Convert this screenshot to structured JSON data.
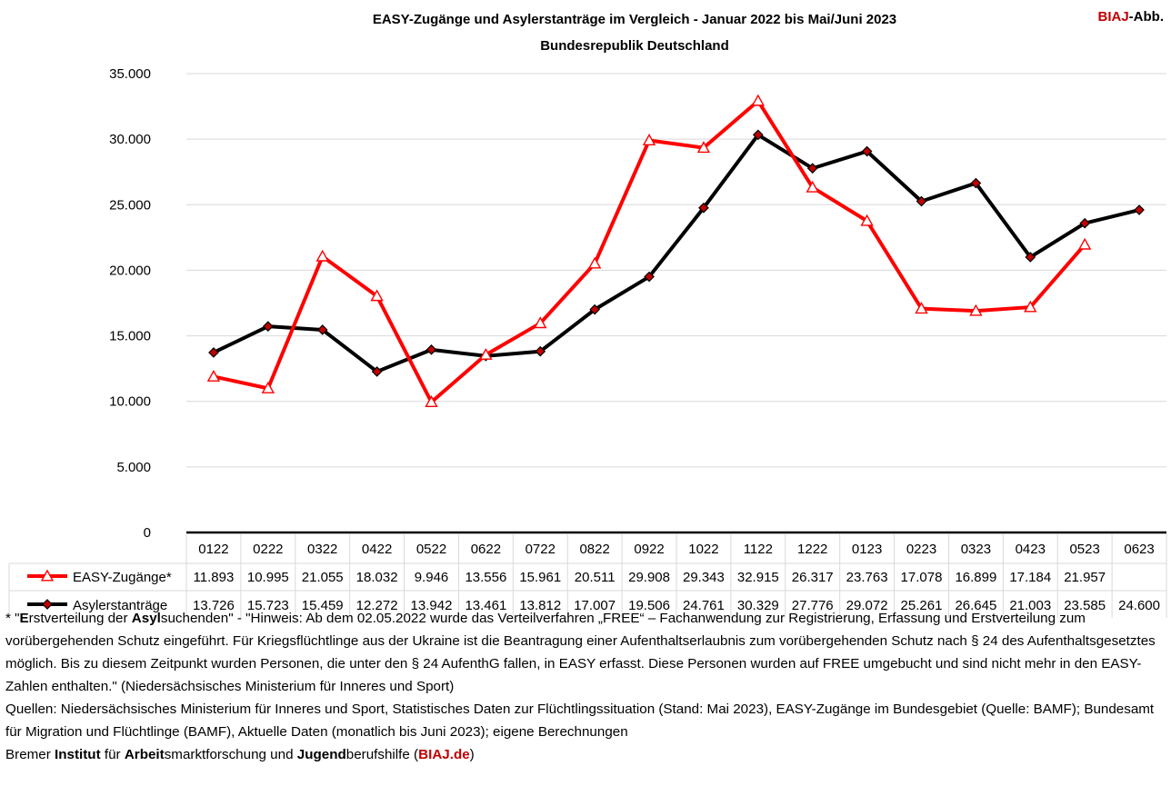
{
  "brand": {
    "prefix": "BIAJ",
    "suffix": "-Abb."
  },
  "chart_data": {
    "type": "line",
    "title": "EASY-Zugänge und Asylerstanträge im Vergleich - Januar 2022 bis Mai/Juni 2023",
    "subtitle": "Bundesrepublik Deutschland",
    "categories": [
      "0122",
      "0222",
      "0322",
      "0422",
      "0522",
      "0622",
      "0722",
      "0822",
      "0922",
      "1022",
      "1122",
      "1222",
      "0123",
      "0223",
      "0323",
      "0423",
      "0523",
      "0623"
    ],
    "ylim": [
      0,
      35000
    ],
    "yticks": [
      0,
      5000,
      10000,
      15000,
      20000,
      25000,
      30000,
      35000
    ],
    "ytick_labels": [
      "0",
      "5.000",
      "10.000",
      "15.000",
      "20.000",
      "25.000",
      "30.000",
      "35.000"
    ],
    "grid": true,
    "legend": "bottom-left (data table)",
    "series": [
      {
        "name": "EASY-Zugänge*",
        "color": "#ff0000",
        "marker": "triangle",
        "values": [
          11893,
          10995,
          21055,
          18032,
          9946,
          13556,
          15961,
          20511,
          29908,
          29343,
          32915,
          26317,
          23763,
          17078,
          16899,
          17184,
          21957,
          null
        ],
        "labels": [
          "11.893",
          "10.995",
          "21.055",
          "18.032",
          "9.946",
          "13.556",
          "15.961",
          "20.511",
          "29.908",
          "29.343",
          "32.915",
          "26.317",
          "23.763",
          "17.078",
          "16.899",
          "17.184",
          "21.957",
          ""
        ]
      },
      {
        "name": "Asylerstanträge",
        "color": "#000000",
        "marker": "diamond",
        "values": [
          13726,
          15723,
          15459,
          12272,
          13942,
          13461,
          13812,
          17007,
          19506,
          24761,
          30329,
          27776,
          29072,
          25261,
          26645,
          21003,
          23585,
          24600
        ],
        "labels": [
          "13.726",
          "15.723",
          "15.459",
          "12.272",
          "13.942",
          "13.461",
          "13.812",
          "17.007",
          "19.506",
          "24.761",
          "30.329",
          "27.776",
          "29.072",
          "25.261",
          "26.645",
          "21.003",
          "23.585",
          "24.600"
        ]
      }
    ]
  },
  "notes": {
    "star": "* \"",
    "e_bold": "E",
    "rstverteilung": "rstverteilung der ",
    "asyl_bold": "Asyl",
    "hinweis": "suchenden\" - \"Hinweis: Ab dem 02.05.2022 wurde das Verteilverfahren „FREE“ – Fachanwendung zur Registrierung, Erfassung und Erstverteilung zum vorübergehenden Schutz eingeführt. Für Kriegsflüchtlinge aus der Ukraine ist die Beantragung einer Aufenthaltserlaubnis zum vorübergehenden Schutz nach § 24 des Aufenthaltsgesetztes möglich. Bis zu diesem Zeitpunkt wurden Personen, die unter den § 24 AufenthG fallen, in EASY erfasst. Diese Personen wurden auf FREE umgebucht und sind nicht mehr in den EASY-Zahlen enthalten.\" (Niedersächsisches Ministerium für Inneres und Sport)",
    "sources": "Quellen: Niedersächsisches Ministerium für Inneres und Sport, Statistisches Daten zur Flüchtlingssituation (Stand: Mai 2023), EASY-Zugänge im Bundesgebiet (Quelle: BAMF); Bundesamt für Migration und Flüchtlinge (BAMF), Aktuelle Daten (monatlich bis Juni 2023); eigene Berechnungen",
    "bremer": "Bremer ",
    "institut": "Institut",
    "fuer": " für ",
    "arbeit": "Arbeit",
    "smarkt": "smarktforschung und ",
    "jugend": "Jugend",
    "berufs": "berufshilfe (",
    "link": "BIAJ.de",
    "close": ")"
  }
}
